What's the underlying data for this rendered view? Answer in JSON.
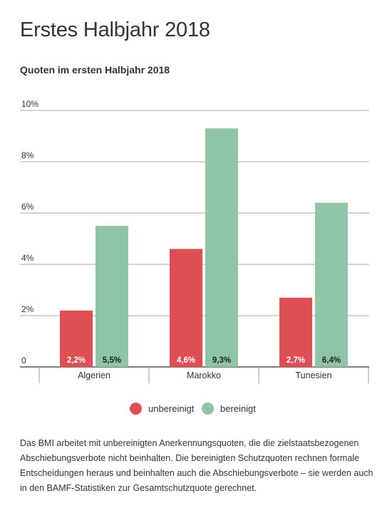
{
  "page": {
    "title": "Erstes Halbjahr 2018"
  },
  "colors": {
    "unbereinigt": "#dd4f53",
    "bereinigt": "#8fc4a6",
    "grid": "#aaaaaa",
    "baseline": "#333333"
  },
  "chart_data": {
    "type": "bar",
    "title": "Quoten im ersten Halbjahr 2018",
    "categories": [
      "Algerien",
      "Marokko",
      "Tunesien"
    ],
    "series": [
      {
        "name": "unbereinigt",
        "values": [
          2.2,
          4.6,
          2.7
        ],
        "labels": [
          "2,2%",
          "4,6%",
          "2,7%"
        ]
      },
      {
        "name": "bereinigt",
        "values": [
          5.5,
          9.3,
          6.4
        ],
        "labels": [
          "5,5%",
          "9,3%",
          "6,4%"
        ]
      }
    ],
    "y_ticks": [
      0,
      2,
      4,
      6,
      8,
      10
    ],
    "y_tick_labels": [
      "0",
      "2%",
      "4%",
      "6%",
      "8%",
      "10%"
    ],
    "ylim": [
      0,
      10
    ],
    "grid": true,
    "legend_position": "bottom-center"
  },
  "footnote": "Das BMI arbeitet mit unbereinigten Anerkennungsquoten, die die zielstaatsbezogenen Abschiebungsverbote nicht beinhalten. Die bereinigten Schutzquoten rechnen formale Entscheidungen heraus und beinhalten auch die Abschiebungsverbote – sie werden auch in den BAMF-Statistiken zur Gesamtschutzquote gerechnet."
}
